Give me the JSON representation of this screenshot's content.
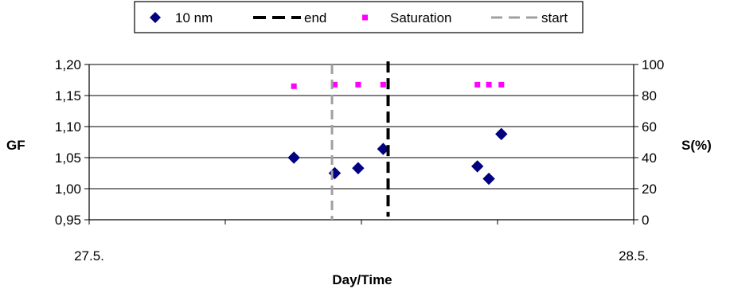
{
  "chart_data": {
    "type": "scatter",
    "title": "",
    "xlabel": "Day/Time",
    "ylabel_left": "GF",
    "ylabel_right": "S(%)",
    "x_tick_labels": [
      {
        "x": 27.5,
        "label": "27.5."
      },
      {
        "x": 28.5,
        "label": "28.5."
      }
    ],
    "xlim": [
      27.5,
      28.5
    ],
    "x_minor_ticks": [
      27.5,
      27.75,
      28.0,
      28.25,
      28.5
    ],
    "ylim_left": [
      0.95,
      1.2
    ],
    "y_left_ticks": [
      {
        "value": 1.2,
        "label": "1,20"
      },
      {
        "value": 1.15,
        "label": "1,15"
      },
      {
        "value": 1.1,
        "label": "1,10"
      },
      {
        "value": 1.05,
        "label": "1,05"
      },
      {
        "value": 1.0,
        "label": "1,00"
      },
      {
        "value": 0.95,
        "label": "0,95"
      }
    ],
    "ylim_right": [
      0,
      100
    ],
    "y_right_ticks": [
      {
        "value": 100,
        "label": "100"
      },
      {
        "value": 80,
        "label": "80"
      },
      {
        "value": 60,
        "label": "60"
      },
      {
        "value": 40,
        "label": "40"
      },
      {
        "value": 20,
        "label": "20"
      },
      {
        "value": 0,
        "label": "0"
      }
    ],
    "grid": "horizontal",
    "legend_position": "top",
    "series": [
      {
        "name": "10 nm",
        "axis": "left",
        "marker": "diamond",
        "color": "#000080",
        "points": [
          {
            "x": 27.876,
            "y": 1.05
          },
          {
            "x": 27.951,
            "y": 1.025
          },
          {
            "x": 27.994,
            "y": 1.033
          },
          {
            "x": 28.04,
            "y": 1.064
          },
          {
            "x": 28.213,
            "y": 1.036
          },
          {
            "x": 28.234,
            "y": 1.016
          },
          {
            "x": 28.257,
            "y": 1.088
          }
        ]
      },
      {
        "name": "end",
        "axis": "left",
        "type": "vline",
        "style": "dashed",
        "color": "#000000",
        "x": 28.049,
        "y_range": [
          0.955,
          1.205
        ]
      },
      {
        "name": "Saturation",
        "axis": "right",
        "marker": "square",
        "color": "#ff00ff",
        "points": [
          {
            "x": 27.876,
            "y": 86
          },
          {
            "x": 27.951,
            "y": 87
          },
          {
            "x": 27.994,
            "y": 87
          },
          {
            "x": 28.04,
            "y": 87
          },
          {
            "x": 28.213,
            "y": 87
          },
          {
            "x": 28.234,
            "y": 87
          },
          {
            "x": 28.257,
            "y": 87
          }
        ]
      },
      {
        "name": "start",
        "axis": "left",
        "type": "vline",
        "style": "dashed",
        "color": "#a0a0a0",
        "x": 27.946,
        "y_range": [
          0.95,
          1.2
        ]
      }
    ]
  }
}
